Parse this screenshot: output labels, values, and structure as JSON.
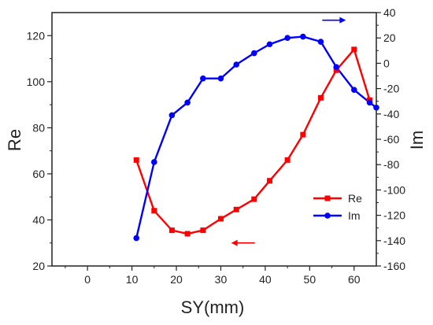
{
  "chart_data": {
    "type": "line",
    "x": [
      11,
      15,
      19,
      22.5,
      26,
      30,
      33.5,
      37.5,
      41,
      45,
      48.5,
      52.5,
      56,
      60,
      63.5,
      65
    ],
    "series": [
      {
        "name": "Re",
        "axis": "left",
        "color": "#ff0000",
        "marker": "square",
        "values": [
          66,
          44,
          35.5,
          34,
          35.5,
          40.5,
          44.5,
          49,
          57,
          66,
          77,
          93,
          105,
          114,
          92,
          null
        ]
      },
      {
        "name": "Im",
        "axis": "right",
        "color": "#0000ff",
        "marker": "circle",
        "values": [
          -138,
          -78,
          -41,
          -31,
          -12,
          -12,
          -1,
          8,
          15,
          20,
          21,
          17,
          -3,
          -21,
          -31,
          -35
        ]
      }
    ],
    "xlabel": "SY(mm)",
    "ylabel_left": "Re",
    "ylabel_right": "Im",
    "xlim": [
      -8,
      65
    ],
    "ylim_left": [
      20,
      130
    ],
    "ylim_right": [
      -160,
      40
    ],
    "x_ticks": [
      "0",
      "10",
      "20",
      "30",
      "40",
      "50",
      "60"
    ],
    "y_left_ticks": [
      "20",
      "40",
      "60",
      "80",
      "100",
      "120"
    ],
    "y_right_ticks": [
      "-160",
      "-140",
      "-120",
      "-100",
      "-80",
      "-60",
      "-40",
      "-20",
      "0",
      "20",
      "40"
    ],
    "legend": [
      "Re",
      "Im"
    ],
    "legend_position": "lower-right",
    "grid": false,
    "arrow_annotations": [
      {
        "direction": "right",
        "series": "Im",
        "x": 55.5,
        "y_right": 34
      },
      {
        "direction": "left",
        "series": "Re",
        "x": 35,
        "y_left": 30
      }
    ]
  }
}
